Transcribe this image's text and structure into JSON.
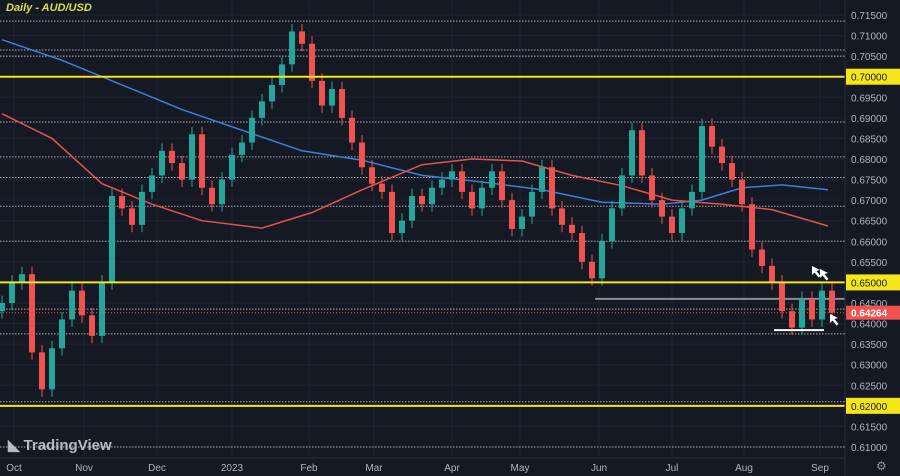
{
  "header": {
    "title": "Daily - AUD/USD"
  },
  "watermark": "TradingView",
  "settings_icon": "gear-icon",
  "colors": {
    "up": "#26a69a",
    "down": "#ef5350",
    "ma_fast": "#e5534b",
    "ma_slow": "#3d7fd9",
    "level": "#f5e61a",
    "last_price": "#ef5350"
  },
  "chart_data": {
    "type": "candlestick",
    "title": "Daily - AUD/USD",
    "ylim": [
      0.607,
      0.7185
    ],
    "y_ticks": [
      "0.71500",
      "0.71000",
      "0.70500",
      "0.70000",
      "0.69500",
      "0.69000",
      "0.68500",
      "0.68000",
      "0.67500",
      "0.67000",
      "0.66500",
      "0.66000",
      "0.65500",
      "0.65000",
      "0.64500",
      "0.64000",
      "0.63500",
      "0.63000",
      "0.62500",
      "0.62000",
      "0.61500",
      "0.61000"
    ],
    "x_labels": [
      {
        "label": "Oct",
        "index": 1.2
      },
      {
        "label": "Nov",
        "index": 8.2
      },
      {
        "label": "Dec",
        "index": 15.5
      },
      {
        "label": "2023",
        "index": 23
      },
      {
        "label": "Feb",
        "index": 30.7
      },
      {
        "label": "Mar",
        "index": 37.2
      },
      {
        "label": "Apr",
        "index": 45
      },
      {
        "label": "May",
        "index": 51.8
      },
      {
        "label": "Jun",
        "index": 59.7
      },
      {
        "label": "Jul",
        "index": 67
      },
      {
        "label": "Aug",
        "index": 74.2
      },
      {
        "label": "Sep",
        "index": 81.8
      }
    ],
    "open_first": 0.643,
    "closes": [
      0.645,
      0.65,
      0.652,
      0.633,
      0.624,
      0.634,
      0.641,
      0.648,
      0.642,
      0.637,
      0.65,
      0.671,
      0.668,
      0.664,
      0.672,
      0.676,
      0.682,
      0.679,
      0.675,
      0.686,
      0.673,
      0.669,
      0.675,
      0.681,
      0.684,
      0.69,
      0.694,
      0.698,
      0.703,
      0.711,
      0.708,
      0.699,
      0.693,
      0.697,
      0.69,
      0.684,
      0.678,
      0.674,
      0.672,
      0.662,
      0.665,
      0.671,
      0.669,
      0.673,
      0.675,
      0.677,
      0.672,
      0.668,
      0.673,
      0.677,
      0.67,
      0.663,
      0.666,
      0.672,
      0.678,
      0.668,
      0.664,
      0.662,
      0.655,
      0.651,
      0.66,
      0.668,
      0.676,
      0.687,
      0.676,
      0.67,
      0.666,
      0.662,
      0.668,
      0.672,
      0.688,
      0.683,
      0.679,
      0.675,
      0.669,
      0.658,
      0.654,
      0.65,
      0.643,
      0.639,
      0.646,
      0.641,
      0.648,
      0.64264
    ],
    "ma_fast": [
      [
        0,
        0.691
      ],
      [
        5,
        0.685
      ],
      [
        10,
        0.674
      ],
      [
        15,
        0.669
      ],
      [
        20,
        0.665
      ],
      [
        26,
        0.6632
      ],
      [
        31,
        0.667
      ],
      [
        36,
        0.6725
      ],
      [
        42,
        0.6786
      ],
      [
        47,
        0.68
      ],
      [
        52,
        0.6795
      ],
      [
        57,
        0.676
      ],
      [
        62,
        0.6735
      ],
      [
        67,
        0.67
      ],
      [
        72,
        0.669
      ],
      [
        77,
        0.6677
      ],
      [
        82.6,
        0.6637
      ]
    ],
    "ma_slow": [
      [
        0,
        0.709
      ],
      [
        6,
        0.704
      ],
      [
        12,
        0.698
      ],
      [
        18,
        0.692
      ],
      [
        24,
        0.687
      ],
      [
        30,
        0.682
      ],
      [
        36,
        0.6797
      ],
      [
        42,
        0.676
      ],
      [
        48,
        0.6744
      ],
      [
        54,
        0.6725
      ],
      [
        60,
        0.6695
      ],
      [
        66,
        0.669
      ],
      [
        70,
        0.67
      ],
      [
        74,
        0.673
      ],
      [
        78,
        0.6737
      ],
      [
        82.6,
        0.6725
      ]
    ],
    "levels_major": [
      0.7,
      0.65,
      0.62
    ],
    "levels_minor": [
      0.7135,
      0.7065,
      0.705,
      0.689,
      0.6805,
      0.6755,
      0.6685,
      0.66,
      0.6435,
      0.6375,
      0.621,
      0.61
    ],
    "support_zone": 0.646,
    "support_segment": {
      "price": 0.6384,
      "from_index": 77.2,
      "to_index": 82.2
    },
    "last_price": "0.64264"
  }
}
